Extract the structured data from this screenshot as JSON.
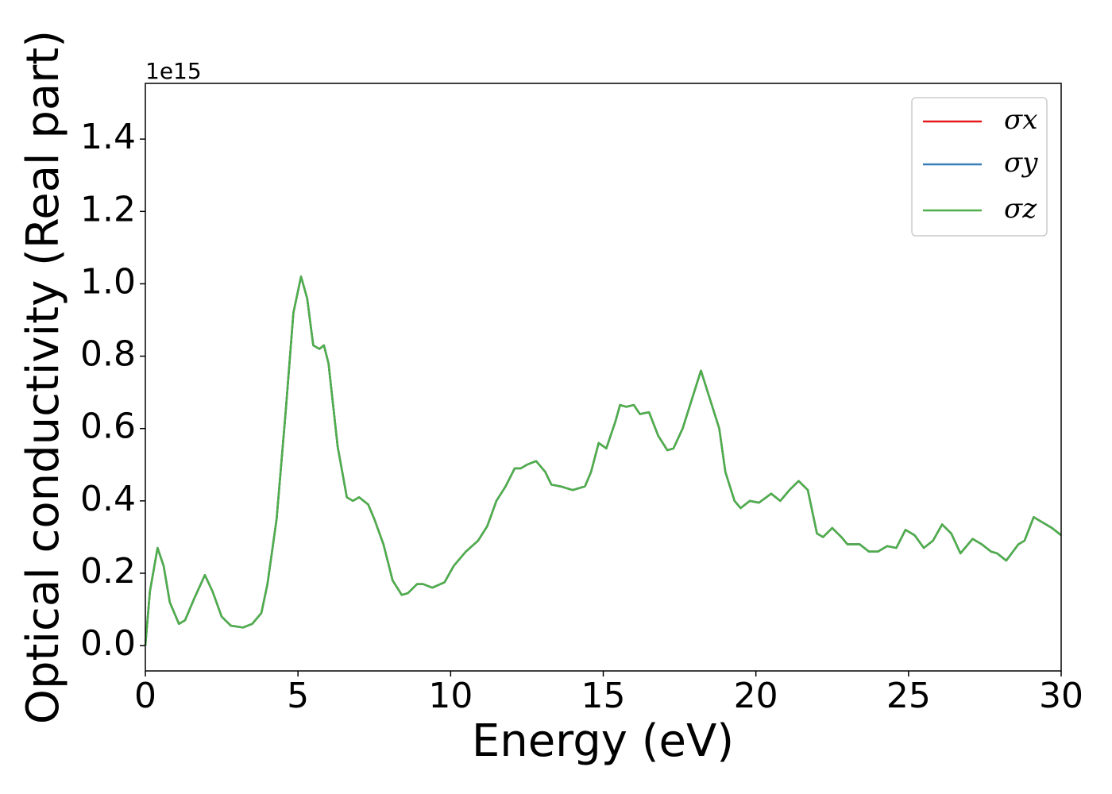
{
  "chart_data": {
    "type": "line",
    "x_label": "Energy (eV)",
    "y_label": "Optical conductivity (Real part)",
    "y_offset_text": "1e15",
    "x": [
      0,
      0.15,
      0.4,
      0.6,
      0.8,
      1.1,
      1.3,
      1.6,
      1.95,
      2.2,
      2.5,
      2.8,
      3.2,
      3.5,
      3.8,
      4.0,
      4.3,
      4.6,
      4.85,
      5.1,
      5.3,
      5.5,
      5.7,
      5.85,
      6.0,
      6.3,
      6.6,
      6.8,
      7.0,
      7.3,
      7.5,
      7.8,
      8.1,
      8.4,
      8.6,
      8.9,
      9.1,
      9.4,
      9.8,
      10.1,
      10.5,
      10.9,
      11.2,
      11.5,
      11.8,
      12.1,
      12.3,
      12.5,
      12.8,
      13.1,
      13.3,
      13.6,
      14.0,
      14.4,
      14.6,
      14.85,
      15.1,
      15.4,
      15.55,
      15.75,
      16.0,
      16.2,
      16.5,
      16.8,
      17.1,
      17.3,
      17.6,
      17.9,
      18.2,
      18.5,
      18.8,
      19.0,
      19.3,
      19.5,
      19.8,
      20.1,
      20.5,
      20.8,
      21.1,
      21.4,
      21.7,
      22.0,
      22.2,
      22.5,
      22.8,
      23.0,
      23.4,
      23.7,
      24.0,
      24.3,
      24.6,
      24.9,
      25.2,
      25.5,
      25.8,
      26.1,
      26.4,
      26.7,
      27.1,
      27.4,
      27.7,
      27.9,
      28.2,
      28.6,
      28.8,
      29.1,
      29.4,
      29.7,
      30.0
    ],
    "series": [
      {
        "name": "σx",
        "color": "#e41a1c",
        "values": [
          0.0,
          0.15,
          0.27,
          0.22,
          0.12,
          0.06,
          0.07,
          0.13,
          0.195,
          0.15,
          0.08,
          0.055,
          0.05,
          0.06,
          0.09,
          0.17,
          0.35,
          0.65,
          0.92,
          1.02,
          0.96,
          0.83,
          0.82,
          0.83,
          0.78,
          0.55,
          0.41,
          0.4,
          0.41,
          0.39,
          0.35,
          0.28,
          0.18,
          0.14,
          0.145,
          0.17,
          0.17,
          0.16,
          0.175,
          0.22,
          0.26,
          0.29,
          0.33,
          0.4,
          0.44,
          0.49,
          0.49,
          0.5,
          0.51,
          0.48,
          0.445,
          0.44,
          0.43,
          0.44,
          0.48,
          0.56,
          0.545,
          0.62,
          0.665,
          0.66,
          0.665,
          0.64,
          0.645,
          0.58,
          0.54,
          0.545,
          0.6,
          0.68,
          0.76,
          0.68,
          0.6,
          0.48,
          0.4,
          0.38,
          0.4,
          0.395,
          0.42,
          0.4,
          0.43,
          0.455,
          0.43,
          0.31,
          0.3,
          0.325,
          0.3,
          0.28,
          0.28,
          0.26,
          0.26,
          0.275,
          0.27,
          0.32,
          0.305,
          0.27,
          0.29,
          0.335,
          0.31,
          0.255,
          0.295,
          0.28,
          0.26,
          0.255,
          0.235,
          0.28,
          0.29,
          0.355,
          0.34,
          0.325,
          0.305
        ]
      },
      {
        "name": "σy",
        "color": "#377eb8",
        "values": [
          0.0,
          0.15,
          0.27,
          0.22,
          0.12,
          0.06,
          0.07,
          0.13,
          0.195,
          0.15,
          0.08,
          0.055,
          0.05,
          0.06,
          0.09,
          0.17,
          0.35,
          0.65,
          0.92,
          1.02,
          0.96,
          0.83,
          0.82,
          0.83,
          0.78,
          0.55,
          0.41,
          0.4,
          0.41,
          0.39,
          0.35,
          0.28,
          0.18,
          0.14,
          0.145,
          0.17,
          0.17,
          0.16,
          0.175,
          0.22,
          0.26,
          0.29,
          0.33,
          0.4,
          0.44,
          0.49,
          0.49,
          0.5,
          0.51,
          0.48,
          0.445,
          0.44,
          0.43,
          0.44,
          0.48,
          0.56,
          0.545,
          0.62,
          0.665,
          0.66,
          0.665,
          0.64,
          0.645,
          0.58,
          0.54,
          0.545,
          0.6,
          0.68,
          0.76,
          0.68,
          0.6,
          0.48,
          0.4,
          0.38,
          0.4,
          0.395,
          0.42,
          0.4,
          0.43,
          0.455,
          0.43,
          0.31,
          0.3,
          0.325,
          0.3,
          0.28,
          0.28,
          0.26,
          0.26,
          0.275,
          0.27,
          0.32,
          0.305,
          0.27,
          0.29,
          0.335,
          0.31,
          0.255,
          0.295,
          0.28,
          0.26,
          0.255,
          0.235,
          0.28,
          0.29,
          0.355,
          0.34,
          0.325,
          0.305
        ]
      },
      {
        "name": "σz",
        "color": "#4daf4a",
        "values": [
          0.0,
          0.15,
          0.27,
          0.22,
          0.12,
          0.06,
          0.07,
          0.13,
          0.195,
          0.15,
          0.08,
          0.055,
          0.05,
          0.06,
          0.09,
          0.17,
          0.35,
          0.65,
          0.92,
          1.02,
          0.96,
          0.83,
          0.82,
          0.83,
          0.78,
          0.55,
          0.41,
          0.4,
          0.41,
          0.39,
          0.35,
          0.28,
          0.18,
          0.14,
          0.145,
          0.17,
          0.17,
          0.16,
          0.175,
          0.22,
          0.26,
          0.29,
          0.33,
          0.4,
          0.44,
          0.49,
          0.49,
          0.5,
          0.51,
          0.48,
          0.445,
          0.44,
          0.43,
          0.44,
          0.48,
          0.56,
          0.545,
          0.62,
          0.665,
          0.66,
          0.665,
          0.64,
          0.645,
          0.58,
          0.54,
          0.545,
          0.6,
          0.68,
          0.76,
          0.68,
          0.6,
          0.48,
          0.4,
          0.38,
          0.4,
          0.395,
          0.42,
          0.4,
          0.43,
          0.455,
          0.43,
          0.31,
          0.3,
          0.325,
          0.3,
          0.28,
          0.28,
          0.26,
          0.26,
          0.275,
          0.27,
          0.32,
          0.305,
          0.27,
          0.29,
          0.335,
          0.31,
          0.255,
          0.295,
          0.28,
          0.26,
          0.255,
          0.235,
          0.28,
          0.29,
          0.355,
          0.34,
          0.325,
          0.305
        ]
      }
    ],
    "xlim": [
      0,
      30
    ],
    "xticks": [
      0,
      5,
      10,
      15,
      20,
      25,
      30
    ],
    "ylim": [
      -0.07,
      1.554
    ],
    "yticks": [
      {
        "value": 0,
        "label": "0.0"
      },
      0.2,
      0.4,
      0.6,
      0.8,
      {
        "value": 1,
        "label": "1.0"
      },
      1.2,
      1.4
    ],
    "grid": false,
    "legend": "upper right"
  }
}
